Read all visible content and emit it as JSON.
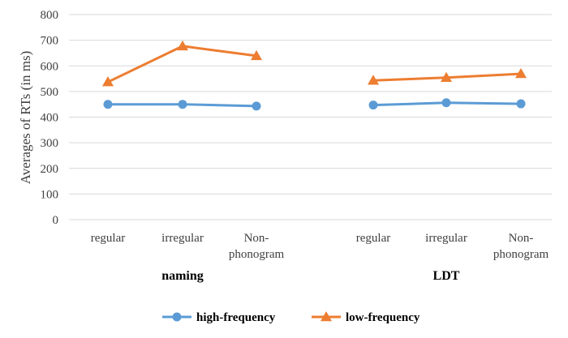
{
  "chart_data": {
    "type": "line",
    "ylabel": "Averages of RTs (in ms)",
    "ylim": [
      0,
      800
    ],
    "yticks": [
      0,
      100,
      200,
      300,
      400,
      500,
      600,
      700,
      800
    ],
    "grid": true,
    "legend_position": "bottom",
    "groups": [
      {
        "name": "naming",
        "categories": [
          [
            "regular"
          ],
          [
            "irregular"
          ],
          [
            "Non-",
            "phonogram"
          ]
        ]
      },
      {
        "name": "LDT",
        "categories": [
          [
            "regular"
          ],
          [
            "irregular"
          ],
          [
            "Non-",
            "phonogram"
          ]
        ]
      }
    ],
    "series": [
      {
        "name": "high-frequency",
        "color": "#5b9bd5",
        "marker": "circle",
        "values": [
          [
            450,
            450,
            443
          ],
          [
            447,
            456,
            452
          ]
        ]
      },
      {
        "name": "low-frequency",
        "color": "#ed7d31",
        "marker": "triangle",
        "values": [
          [
            537,
            677,
            639
          ],
          [
            543,
            554,
            569
          ]
        ]
      }
    ]
  }
}
